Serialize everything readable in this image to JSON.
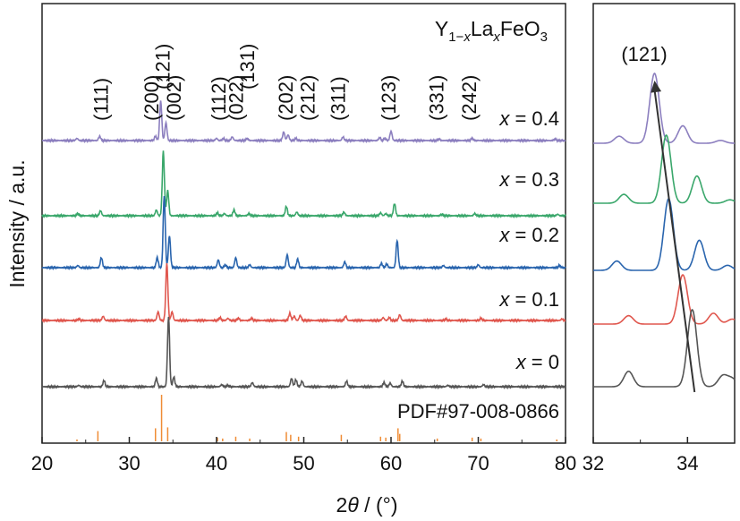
{
  "chart_data": [
    {
      "type": "line",
      "title": "Y1−xLaxFeO3",
      "title_parts": {
        "base": "Y",
        "sub1": "1−",
        "sub2": "x",
        "mid": "La",
        "sub3": "x",
        "tail": "FeO",
        "sub4": "3"
      },
      "xlabel_prefix": "2",
      "xlabel_theta": "θ",
      "xlabel_unit": " / (°)",
      "ylabel": "Intensity / a.u.",
      "xlim": [
        20,
        80
      ],
      "x_ticks": [
        "20",
        "30",
        "40",
        "50",
        "60",
        "70",
        "80"
      ],
      "y_ticks_shown": false,
      "grid": false,
      "series": [
        {
          "name": "x = 0.4",
          "var": "x",
          "label_rest": " = 0.4",
          "color": "#8c7fbf",
          "peaks": [
            [
              24.0,
              3
            ],
            [
              26.6,
              6
            ],
            [
              33.0,
              6
            ],
            [
              33.6,
              55
            ],
            [
              34.2,
              25
            ],
            [
              40.0,
              3
            ],
            [
              40.8,
              3
            ],
            [
              41.8,
              5
            ],
            [
              43.5,
              3
            ],
            [
              47.7,
              12
            ],
            [
              48.2,
              8
            ],
            [
              49.1,
              3
            ],
            [
              54.5,
              5
            ],
            [
              58.7,
              4
            ],
            [
              59.3,
              3
            ],
            [
              60.0,
              13
            ],
            [
              65.5,
              2
            ],
            [
              69.3,
              3
            ],
            [
              78.8,
              2
            ]
          ]
        },
        {
          "name": "x = 0.3",
          "var": "x",
          "label_rest": " = 0.3",
          "color": "#3aa76b",
          "peaks": [
            [
              24.1,
              3
            ],
            [
              26.7,
              7
            ],
            [
              33.1,
              8
            ],
            [
              33.9,
              90
            ],
            [
              34.4,
              35
            ],
            [
              40.1,
              4
            ],
            [
              40.9,
              3
            ],
            [
              42.0,
              8
            ],
            [
              43.7,
              3
            ],
            [
              48.0,
              13
            ],
            [
              49.2,
              5
            ],
            [
              54.6,
              5
            ],
            [
              58.8,
              4
            ],
            [
              59.4,
              3
            ],
            [
              60.4,
              17
            ],
            [
              65.8,
              2
            ],
            [
              69.6,
              3
            ],
            [
              79.1,
              2
            ]
          ]
        },
        {
          "name": "x = 0.2",
          "var": "x",
          "label_rest": " = 0.2",
          "color": "#2a65ae",
          "peaks": [
            [
              24.1,
              3
            ],
            [
              26.8,
              14
            ],
            [
              33.2,
              14
            ],
            [
              34.0,
              100
            ],
            [
              34.6,
              45
            ],
            [
              40.2,
              11
            ],
            [
              41.0,
              4
            ],
            [
              42.2,
              14
            ],
            [
              43.8,
              4
            ],
            [
              48.1,
              18
            ],
            [
              49.3,
              12
            ],
            [
              54.7,
              8
            ],
            [
              58.9,
              6
            ],
            [
              59.5,
              5
            ],
            [
              60.7,
              38
            ],
            [
              66.0,
              3
            ],
            [
              70.0,
              4
            ],
            [
              79.3,
              3
            ]
          ]
        },
        {
          "name": "x = 0.1",
          "var": "x",
          "label_rest": " = 0.1",
          "color": "#e0574e",
          "peaks": [
            [
              24.2,
              2
            ],
            [
              27.0,
              6
            ],
            [
              33.3,
              12
            ],
            [
              34.3,
              80
            ],
            [
              34.9,
              12
            ],
            [
              40.4,
              4
            ],
            [
              41.3,
              3
            ],
            [
              42.5,
              3
            ],
            [
              44.0,
              3
            ],
            [
              48.4,
              10
            ],
            [
              48.9,
              6
            ],
            [
              49.6,
              7
            ],
            [
              54.8,
              6
            ],
            [
              59.1,
              4
            ],
            [
              59.8,
              4
            ],
            [
              61.0,
              8
            ],
            [
              66.3,
              2
            ],
            [
              70.3,
              3
            ],
            [
              79.6,
              2
            ]
          ]
        },
        {
          "name": "x = 0",
          "var": "x",
          "label_rest": " = 0",
          "color": "#555555",
          "peaks": [
            [
              24.2,
              2
            ],
            [
              27.1,
              9
            ],
            [
              33.1,
              12
            ],
            [
              34.5,
              100
            ],
            [
              35.1,
              14
            ],
            [
              40.6,
              3
            ],
            [
              41.3,
              2
            ],
            [
              44.1,
              6
            ],
            [
              48.6,
              12
            ],
            [
              49.1,
              10
            ],
            [
              49.8,
              8
            ],
            [
              54.9,
              8
            ],
            [
              59.2,
              6
            ],
            [
              59.9,
              5
            ],
            [
              61.3,
              8
            ],
            [
              66.5,
              2
            ],
            [
              70.6,
              3
            ]
          ]
        }
      ],
      "miller_indices": [
        {
          "label": "(111)",
          "x": 26.8
        },
        {
          "label": "(200)",
          "x": 32.6
        },
        {
          "label": "(121)",
          "x": 33.9
        },
        {
          "label": "(002)",
          "x": 35.2
        },
        {
          "label": "(112)",
          "x": 40.3
        },
        {
          "label": "(022)",
          "x": 42.3
        },
        {
          "label": "(131)",
          "x": 43.6
        },
        {
          "label": "(202)",
          "x": 48.0
        },
        {
          "label": "(212)",
          "x": 50.5
        },
        {
          "label": "(311)",
          "x": 54.0
        },
        {
          "label": "(123)",
          "x": 59.8
        },
        {
          "label": "(331)",
          "x": 65.3
        },
        {
          "label": "(242)",
          "x": 69.0
        }
      ],
      "reference": {
        "name": "PDF#97-008-0866",
        "color": "#ef8c35",
        "sticks": [
          [
            24.0,
            4
          ],
          [
            26.4,
            22
          ],
          [
            33.0,
            28
          ],
          [
            33.7,
            100
          ],
          [
            34.4,
            30
          ],
          [
            40.1,
            8
          ],
          [
            40.7,
            6
          ],
          [
            42.2,
            10
          ],
          [
            43.8,
            6
          ],
          [
            48.0,
            20
          ],
          [
            48.5,
            14
          ],
          [
            49.4,
            10
          ],
          [
            54.3,
            14
          ],
          [
            58.8,
            10
          ],
          [
            59.4,
            8
          ],
          [
            60.8,
            28
          ],
          [
            61.0,
            16
          ],
          [
            65.3,
            6
          ],
          [
            69.3,
            8
          ],
          [
            70.3,
            6
          ],
          [
            79.0,
            4
          ]
        ]
      }
    },
    {
      "type": "line",
      "title": "",
      "xlim": [
        32,
        35
      ],
      "x_ticks": [
        "32",
        "34"
      ],
      "annotation": "(121)",
      "series": [
        {
          "name": "x = 0.4",
          "color": "#8c7fbf",
          "peaks": [
            [
              32.55,
              10
            ],
            [
              33.3,
              100
            ],
            [
              33.9,
              25
            ],
            [
              34.7,
              4
            ]
          ]
        },
        {
          "name": "x = 0.3",
          "color": "#3aa76b",
          "peaks": [
            [
              32.65,
              13
            ],
            [
              33.55,
              100
            ],
            [
              34.2,
              40
            ],
            [
              34.9,
              5
            ]
          ]
        },
        {
          "name": "x = 0.2",
          "color": "#2a65ae",
          "peaks": [
            [
              32.5,
              13
            ],
            [
              33.6,
              100
            ],
            [
              34.25,
              42
            ],
            [
              34.85,
              7
            ]
          ]
        },
        {
          "name": "x = 0.1",
          "color": "#e0574e",
          "peaks": [
            [
              32.75,
              17
            ],
            [
              33.9,
              100
            ],
            [
              34.55,
              22
            ],
            [
              34.95,
              10
            ]
          ]
        },
        {
          "name": "x = 0",
          "color": "#555555",
          "peaks": [
            [
              32.75,
              20
            ],
            [
              34.1,
              100
            ],
            [
              34.75,
              14
            ],
            [
              34.95,
              10
            ]
          ]
        }
      ],
      "trend_arrow": {
        "from_x": 34.15,
        "to_x": 33.3
      }
    }
  ]
}
